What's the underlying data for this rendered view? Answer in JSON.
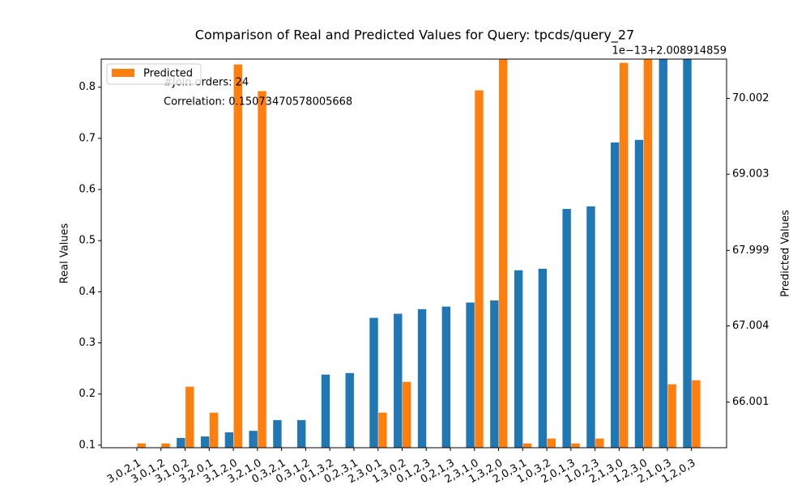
{
  "chart_data": {
    "type": "bar",
    "title": "Comparison of Real and Predicted Values for Query: tpcds/query_27",
    "ylabel": "Real Values",
    "y2label": "Predicted Values",
    "y2_offset_label": "1e−13+2.008914859",
    "annotations": [
      "#Join orders: 24",
      "Correlation: 0.15073470578005668"
    ],
    "categories": [
      "3,0,2,1",
      "3,0,1,2",
      "3,1,0,2",
      "3,2,0,1",
      "3,1,2,0",
      "3,2,1,0",
      "0,3,2,1",
      "0,3,1,2",
      "0,1,3,2",
      "0,2,3,1",
      "2,3,0,1",
      "1,3,0,2",
      "0,1,2,3",
      "0,2,1,3",
      "2,3,1,0",
      "1,3,2,0",
      "2,0,3,1",
      "1,0,3,2",
      "2,0,1,3",
      "1,0,2,3",
      "2,1,3,0",
      "1,2,3,0",
      "2,1,0,3",
      "1,2,0,3"
    ],
    "series": [
      {
        "color": "#1f77b4",
        "axis": "y",
        "values": [
          null,
          0.095,
          0.114,
          0.117,
          0.125,
          0.128,
          0.149,
          0.149,
          0.238,
          0.241,
          0.349,
          0.357,
          0.366,
          0.371,
          0.379,
          0.383,
          0.442,
          0.445,
          0.562,
          0.567,
          0.692,
          0.697,
          0.855,
          0.855
        ]
      },
      {
        "name": "Predicted",
        "color": "#ff7f0e",
        "axis": "y2",
        "values": [
          65.457,
          65.457,
          66.204,
          65.862,
          70.45,
          70.098,
          null,
          null,
          null,
          null,
          65.862,
          66.268,
          null,
          null,
          70.109,
          70.514,
          65.457,
          65.521,
          65.457,
          65.521,
          70.471,
          70.52,
          66.236,
          66.289
        ]
      }
    ],
    "ylim": [
      0.095,
      0.855
    ],
    "yticks": [
      0.1,
      0.2,
      0.3,
      0.4,
      0.5,
      0.6,
      0.7,
      0.8
    ],
    "y2lim": [
      65.4,
      70.52
    ],
    "y2ticks": [
      66.001,
      67.004,
      67.999,
      69.003,
      70.002
    ],
    "legend": "upper left"
  }
}
